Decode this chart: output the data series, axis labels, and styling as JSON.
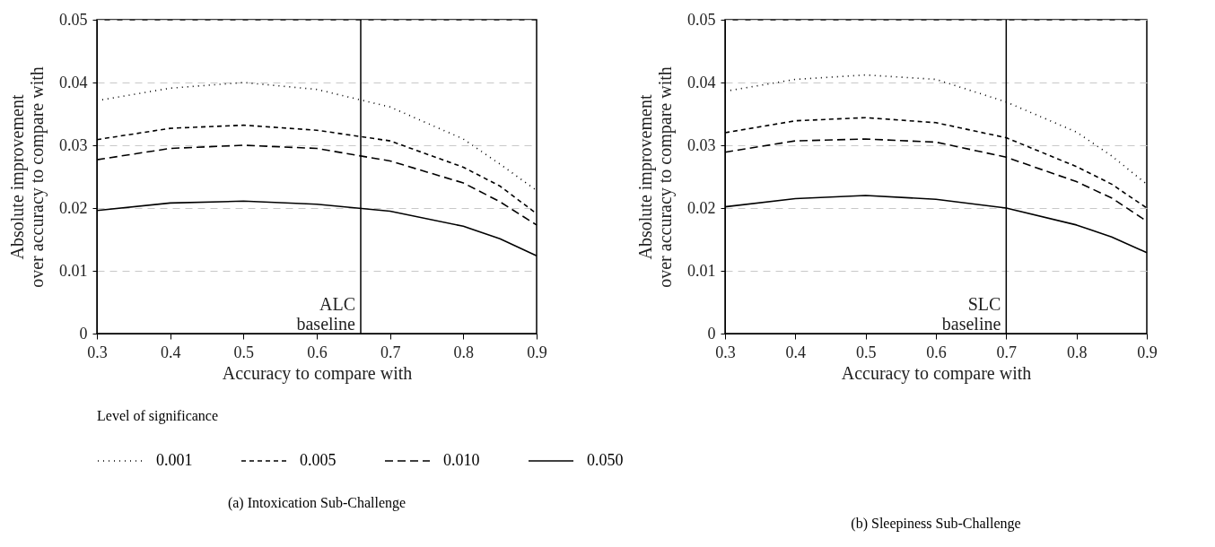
{
  "chart_data": [
    {
      "type": "line",
      "title": "(a) Intoxication Sub-Challenge",
      "xlabel": "Accuracy to compare with",
      "ylabel": "Absolute improvement over accuracy to compare with",
      "legend_title": "Level of significance",
      "legend": "bottom",
      "grid": "y",
      "x": [
        0.3,
        0.4,
        0.5,
        0.6,
        0.7,
        0.8,
        0.85,
        0.9
      ],
      "xlim": [
        0.3,
        0.9
      ],
      "xticks": [
        0.3,
        0.4,
        0.5,
        0.6,
        0.7,
        0.8,
        0.9
      ],
      "ylim": [
        0,
        0.05
      ],
      "yticks": [
        0,
        0.01,
        0.02,
        0.03,
        0.04,
        0.05
      ],
      "series": [
        {
          "name": "0.001",
          "color": "#000000",
          "line_style": "dotted",
          "values": [
            0.0371,
            0.0391,
            0.04,
            0.0389,
            0.0361,
            0.031,
            0.027,
            0.0228
          ]
        },
        {
          "name": "0.005",
          "color": "#000000",
          "line_style": "dashed",
          "values": [
            0.0309,
            0.0327,
            0.0332,
            0.0324,
            0.0307,
            0.0265,
            0.0235,
            0.0191
          ]
        },
        {
          "name": "0.010",
          "color": "#000000",
          "line_style": "dashed",
          "values": [
            0.0277,
            0.0295,
            0.03,
            0.0295,
            0.0275,
            0.024,
            0.021,
            0.0173
          ]
        },
        {
          "name": "0.050",
          "color": "#000000",
          "line_style": "solid",
          "values": [
            0.0196,
            0.0208,
            0.0211,
            0.0206,
            0.0195,
            0.0171,
            0.0151,
            0.0124
          ]
        }
      ],
      "ref_lines": [
        {
          "axis": "x",
          "value": 0.66,
          "label": "ALC baseline",
          "color": "#000000"
        }
      ]
    },
    {
      "type": "line",
      "title": "(b) Sleepiness Sub-Challenge",
      "xlabel": "Accuracy to compare with",
      "ylabel": "Absolute improvement over accuracy to compare with",
      "legend": false,
      "grid": "y",
      "x": [
        0.3,
        0.4,
        0.5,
        0.6,
        0.7,
        0.8,
        0.85,
        0.9
      ],
      "xlim": [
        0.3,
        0.9
      ],
      "xticks": [
        0.3,
        0.4,
        0.5,
        0.6,
        0.7,
        0.8,
        0.9
      ],
      "ylim": [
        0,
        0.05
      ],
      "yticks": [
        0,
        0.01,
        0.02,
        0.03,
        0.04,
        0.05
      ],
      "series": [
        {
          "name": "0.001",
          "color": "#000000",
          "line_style": "dotted",
          "values": [
            0.0386,
            0.0405,
            0.0412,
            0.0405,
            0.0369,
            0.0321,
            0.0283,
            0.0238
          ]
        },
        {
          "name": "0.005",
          "color": "#000000",
          "line_style": "dashed",
          "values": [
            0.032,
            0.0339,
            0.0344,
            0.0336,
            0.0312,
            0.0266,
            0.0238,
            0.02
          ]
        },
        {
          "name": "0.010",
          "color": "#000000",
          "line_style": "dashed",
          "values": [
            0.0289,
            0.0307,
            0.031,
            0.0305,
            0.0281,
            0.0242,
            0.0216,
            0.0179
          ]
        },
        {
          "name": "0.050",
          "color": "#000000",
          "line_style": "solid",
          "values": [
            0.0202,
            0.0215,
            0.022,
            0.0214,
            0.02,
            0.0173,
            0.0154,
            0.0129
          ]
        }
      ],
      "ref_lines": [
        {
          "axis": "x",
          "value": 0.7,
          "label": "SLC baseline",
          "color": "#000000"
        }
      ]
    }
  ]
}
